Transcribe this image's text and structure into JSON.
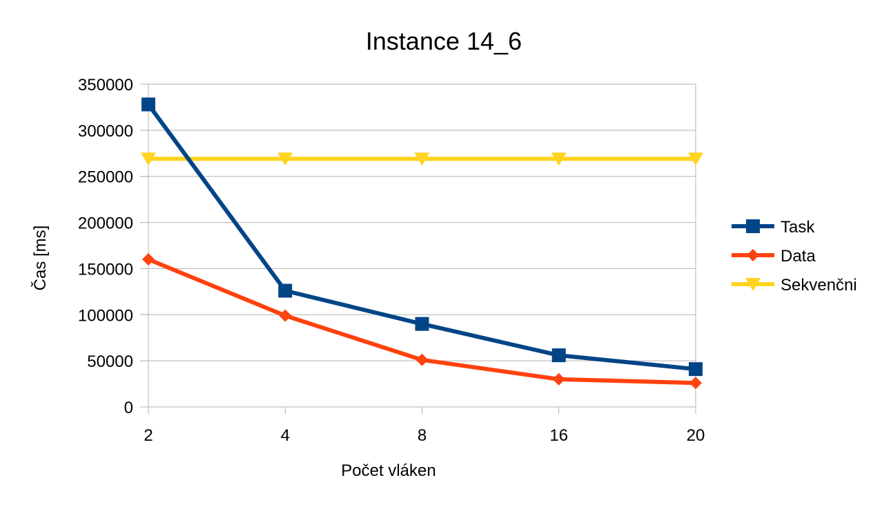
{
  "chart_data": {
    "type": "line",
    "title": "Instance 14_6",
    "xlabel": "Počet vláken",
    "ylabel": "Čas [ms]",
    "categories": [
      "2",
      "4",
      "8",
      "16",
      "20"
    ],
    "ylim": [
      0,
      350000
    ],
    "yticks": [
      0,
      50000,
      100000,
      150000,
      200000,
      250000,
      300000,
      350000
    ],
    "grid": true,
    "legend_position": "right",
    "series": [
      {
        "name": "Task",
        "color": "#004586",
        "marker": "square",
        "values": [
          328000,
          126000,
          90000,
          56000,
          41000
        ]
      },
      {
        "name": "Data",
        "color": "#ff420e",
        "marker": "diamond",
        "values": [
          160000,
          99000,
          51000,
          30000,
          26000
        ]
      },
      {
        "name": "Sekvenčni",
        "color": "#ffd320",
        "marker": "triangle-down",
        "values": [
          269000,
          269000,
          269000,
          269000,
          269000
        ]
      }
    ]
  }
}
